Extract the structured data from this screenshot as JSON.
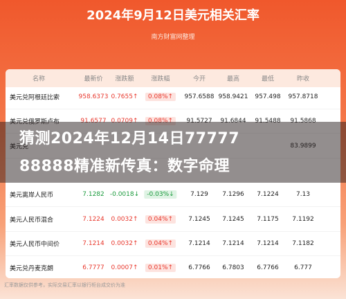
{
  "header": {
    "title": "2024年9月12日美元相关汇率",
    "subtitle": "南方财富网整理"
  },
  "table": {
    "columns": [
      "名称",
      "最新价",
      "涨跌额",
      "涨跌幅",
      "今开",
      "最高",
      "最低",
      "昨收"
    ],
    "rows": [
      [
        "美元兑阿根廷比索",
        "958.6373",
        "0.7655↑",
        "0.08%↑",
        "957.6588",
        "958.9421",
        "957.498",
        "957.8718"
      ],
      [
        "美元兑俄罗斯卢布",
        "91.6577",
        "0.0709↑",
        "0.08%↑",
        "91.5727",
        "91.6844",
        "91.5488",
        "91.5868"
      ],
      [
        "美元兑",
        null,
        null,
        null,
        null,
        null,
        null,
        "83.9899"
      ],
      [
        "美元离岸人民币",
        "7.1282",
        "-0.0018↓",
        "-0.03%↓",
        "7.129",
        "7.1296",
        "7.1224",
        "7.13"
      ],
      [
        "美元人民币混合",
        "7.1224",
        "0.0032↑",
        "0.04%↑",
        "7.1245",
        "7.1245",
        "7.1175",
        "7.1192"
      ],
      [
        "美元人民币中间价",
        "7.1214",
        "0.0032↑",
        "0.04%↑",
        "7.1214",
        "7.1214",
        "7.1214",
        "7.1182"
      ],
      [
        "美元兑丹麦克朗",
        "6.7777",
        "0.0007↑",
        "0.01%↑",
        "6.7766",
        "6.7803",
        "6.7766",
        "6.777"
      ]
    ]
  },
  "overlay": {
    "lines": [
      "猜测2024年12月14日77777",
      "88888精准新传真：数字命理"
    ]
  },
  "footer": "汇率数据仅供参考，实际交易汇率以银行柜台成交价为准"
}
